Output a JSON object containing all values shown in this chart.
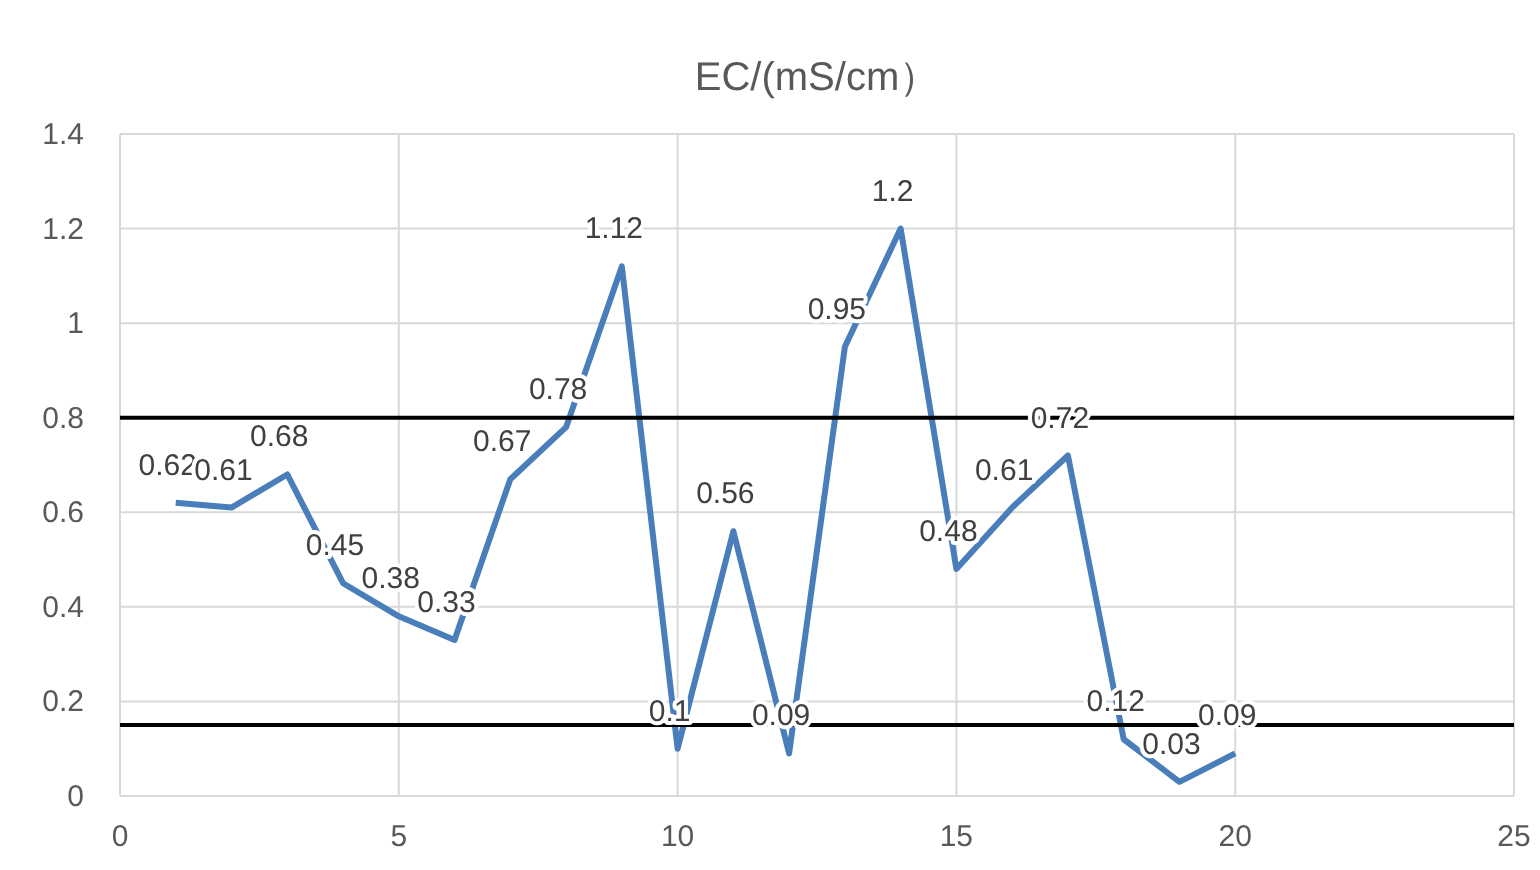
{
  "chart_data": {
    "type": "line",
    "title": "EC/(mS/cm）",
    "x": [
      1,
      2,
      3,
      4,
      5,
      6,
      7,
      8,
      9,
      10,
      11,
      12,
      13,
      14,
      15,
      16,
      17,
      18,
      19,
      20
    ],
    "series": [
      {
        "color": "#4a7ebb",
        "values": [
          0.62,
          0.61,
          0.68,
          0.45,
          0.38,
          0.33,
          0.67,
          0.78,
          1.12,
          0.1,
          0.56,
          0.09,
          0.95,
          1.2,
          0.48,
          0.61,
          0.72,
          0.12,
          0.03,
          0.09
        ]
      }
    ],
    "xlim": [
      0,
      25
    ],
    "xticks": [
      0,
      5,
      10,
      15,
      20,
      25
    ],
    "ylim": [
      0,
      1.4
    ],
    "yticks": [
      0,
      0.2,
      0.4,
      0.6,
      0.8,
      1,
      1.2,
      1.4
    ],
    "ref_lines": [
      {
        "axis": "y",
        "value": 0.8,
        "color": "#000000"
      },
      {
        "axis": "y",
        "value": 0.15,
        "color": "#000000"
      }
    ],
    "grid": true,
    "data_labels": true,
    "marker": "none",
    "line_style": "solid"
  }
}
